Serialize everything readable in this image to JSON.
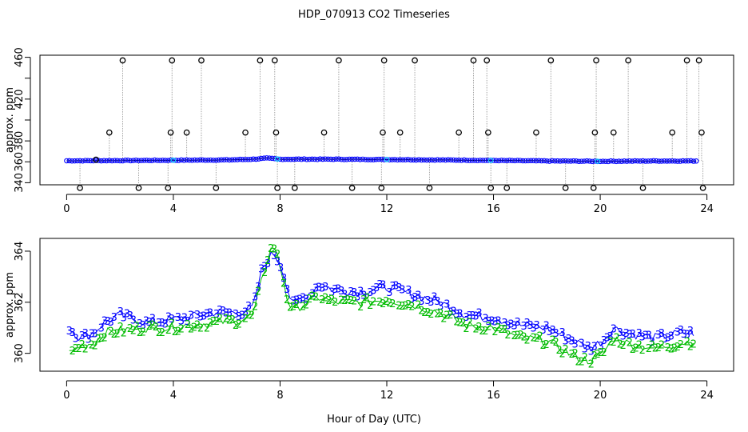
{
  "title": "HDP_070913  CO2 Timeseries",
  "xlabel": "Hour of Day (UTC)",
  "colors": {
    "axis": "#000000",
    "raw_marker": "#000000",
    "raw_spike_line": "#999999",
    "series_blue": "#0000ff",
    "series_cyan": "#00c8ff",
    "series_green": "#00bb00"
  },
  "chart_data": [
    {
      "type": "scatter",
      "name": "top-panel",
      "ylabel": "approx. ppm",
      "xlim": [
        -1,
        25
      ],
      "ylim": [
        338,
        462
      ],
      "xticks": [
        0,
        4,
        8,
        12,
        16,
        20,
        24
      ],
      "yticks": [
        340,
        360,
        380,
        400,
        420,
        440,
        460
      ],
      "ytick_labels": [
        {
          "value": 340,
          "label": "340"
        },
        {
          "value": 360,
          "label": "360"
        },
        {
          "value": 380,
          "label": "380"
        },
        {
          "value": 420,
          "label": "420"
        },
        {
          "value": 460,
          "label": "460"
        }
      ],
      "baseline_anchors": [
        [
          0,
          361.0
        ],
        [
          2,
          361.2
        ],
        [
          4,
          361.5
        ],
        [
          6,
          361.8
        ],
        [
          7,
          362.5
        ],
        [
          7.5,
          363.5
        ],
        [
          8,
          362.5
        ],
        [
          10,
          362.5
        ],
        [
          12,
          362.2
        ],
        [
          14,
          361.8
        ],
        [
          16,
          361.3
        ],
        [
          18,
          360.8
        ],
        [
          20,
          360.5
        ],
        [
          22,
          360.8
        ],
        [
          23.7,
          360.8
        ]
      ],
      "outliers": [
        {
          "x": 0.5,
          "y": 335
        },
        {
          "x": 1.1,
          "y": 362
        },
        {
          "x": 1.6,
          "y": 388
        },
        {
          "x": 2.1,
          "y": 457
        },
        {
          "x": 2.7,
          "y": 335
        },
        {
          "x": 3.8,
          "y": 335
        },
        {
          "x": 3.9,
          "y": 388
        },
        {
          "x": 3.95,
          "y": 457
        },
        {
          "x": 4.5,
          "y": 388
        },
        {
          "x": 5.05,
          "y": 457
        },
        {
          "x": 5.6,
          "y": 335
        },
        {
          "x": 6.7,
          "y": 388
        },
        {
          "x": 7.25,
          "y": 457
        },
        {
          "x": 7.8,
          "y": 457
        },
        {
          "x": 7.85,
          "y": 388
        },
        {
          "x": 7.9,
          "y": 335
        },
        {
          "x": 8.55,
          "y": 335
        },
        {
          "x": 9.65,
          "y": 388
        },
        {
          "x": 10.2,
          "y": 457
        },
        {
          "x": 10.7,
          "y": 335
        },
        {
          "x": 11.8,
          "y": 335
        },
        {
          "x": 11.85,
          "y": 388
        },
        {
          "x": 11.9,
          "y": 457
        },
        {
          "x": 12.5,
          "y": 388
        },
        {
          "x": 13.05,
          "y": 457
        },
        {
          "x": 13.6,
          "y": 335
        },
        {
          "x": 14.7,
          "y": 388
        },
        {
          "x": 15.25,
          "y": 457
        },
        {
          "x": 15.75,
          "y": 457
        },
        {
          "x": 15.8,
          "y": 388
        },
        {
          "x": 15.9,
          "y": 335
        },
        {
          "x": 16.5,
          "y": 335
        },
        {
          "x": 17.6,
          "y": 388
        },
        {
          "x": 18.15,
          "y": 457
        },
        {
          "x": 18.7,
          "y": 335
        },
        {
          "x": 19.75,
          "y": 335
        },
        {
          "x": 19.8,
          "y": 388
        },
        {
          "x": 19.85,
          "y": 457
        },
        {
          "x": 20.5,
          "y": 388
        },
        {
          "x": 21.05,
          "y": 457
        },
        {
          "x": 21.6,
          "y": 335
        },
        {
          "x": 22.7,
          "y": 388
        },
        {
          "x": 23.25,
          "y": 457
        },
        {
          "x": 23.7,
          "y": 457
        },
        {
          "x": 23.8,
          "y": 388
        },
        {
          "x": 23.85,
          "y": 335
        }
      ]
    },
    {
      "type": "line",
      "name": "bottom-panel",
      "ylabel": "approx. ppm",
      "xlim": [
        -1,
        25
      ],
      "ylim": [
        359.3,
        364.5
      ],
      "xticks": [
        0,
        4,
        8,
        12,
        16,
        20,
        24
      ],
      "yticks": [
        360,
        362,
        364
      ],
      "series": [
        {
          "name": "3",
          "marker": "3",
          "color": "blue",
          "anchors": [
            [
              0.1,
              361.0
            ],
            [
              0.5,
              360.6
            ],
            [
              1.0,
              360.8
            ],
            [
              1.4,
              361.2
            ],
            [
              2.0,
              361.5
            ],
            [
              3.0,
              361.2
            ],
            [
              3.8,
              361.3
            ],
            [
              4.5,
              361.4
            ],
            [
              5.5,
              361.6
            ],
            [
              6.5,
              361.6
            ],
            [
              7.0,
              361.8
            ],
            [
              7.3,
              363.2
            ],
            [
              7.6,
              363.8
            ],
            [
              7.8,
              363.9
            ],
            [
              8.1,
              363.3
            ],
            [
              8.3,
              362.4
            ],
            [
              8.5,
              361.9
            ],
            [
              9.0,
              362.3
            ],
            [
              9.5,
              362.7
            ],
            [
              10.0,
              362.5
            ],
            [
              11.0,
              362.4
            ],
            [
              12.0,
              362.6
            ],
            [
              13.0,
              362.3
            ],
            [
              14.0,
              362.0
            ],
            [
              15.0,
              361.5
            ],
            [
              16.0,
              361.4
            ],
            [
              17.0,
              361.1
            ],
            [
              18.0,
              361.0
            ],
            [
              19.0,
              360.5
            ],
            [
              19.6,
              360.2
            ],
            [
              20.1,
              360.5
            ],
            [
              20.5,
              361.0
            ],
            [
              21.0,
              360.8
            ],
            [
              22.0,
              360.6
            ],
            [
              23.0,
              360.8
            ],
            [
              23.6,
              360.8
            ]
          ]
        },
        {
          "name": "2",
          "marker": "2",
          "color": "green",
          "anchors": [
            [
              0.1,
              360.0
            ],
            [
              0.5,
              360.3
            ],
            [
              1.0,
              360.4
            ],
            [
              1.4,
              360.8
            ],
            [
              2.0,
              360.9
            ],
            [
              3.0,
              361.0
            ],
            [
              3.8,
              361.0
            ],
            [
              4.5,
              361.1
            ],
            [
              5.5,
              361.2
            ],
            [
              6.5,
              361.3
            ],
            [
              7.0,
              361.5
            ],
            [
              7.3,
              362.8
            ],
            [
              7.6,
              364.0
            ],
            [
              7.8,
              364.2
            ],
            [
              8.1,
              363.0
            ],
            [
              8.3,
              362.0
            ],
            [
              8.5,
              361.7
            ],
            [
              9.0,
              362.0
            ],
            [
              9.5,
              362.2
            ],
            [
              10.0,
              362.0
            ],
            [
              11.0,
              362.0
            ],
            [
              12.0,
              362.1
            ],
            [
              13.0,
              361.9
            ],
            [
              14.0,
              361.6
            ],
            [
              15.0,
              361.1
            ],
            [
              16.0,
              361.0
            ],
            [
              17.0,
              360.6
            ],
            [
              18.0,
              360.5
            ],
            [
              19.0,
              359.9
            ],
            [
              19.6,
              359.7
            ],
            [
              20.1,
              360.0
            ],
            [
              20.5,
              360.6
            ],
            [
              21.0,
              360.4
            ],
            [
              22.0,
              360.2
            ],
            [
              23.0,
              360.4
            ],
            [
              23.6,
              360.5
            ]
          ]
        }
      ]
    }
  ]
}
